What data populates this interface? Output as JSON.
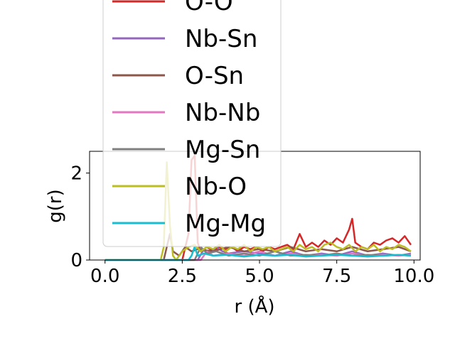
{
  "chart_data": {
    "type": "line",
    "xlabel": "r (Å)",
    "ylabel": "g(r)",
    "xlim": [
      -0.5,
      10.2
    ],
    "ylim": [
      0,
      2.5
    ],
    "xticks": [
      0.0,
      2.5,
      5.0,
      7.5,
      10.0
    ],
    "xtick_labels": [
      "0.0",
      "2.5",
      "5.0",
      "7.5",
      "10.0"
    ],
    "yticks": [
      0,
      2
    ],
    "ytick_labels": [
      "0",
      "2"
    ],
    "legend_position": "upper-left, extending above axes",
    "series": [
      {
        "name": "O-O",
        "color": "#d62728",
        "x": [
          0,
          2.5,
          2.6,
          2.7,
          2.8,
          2.9,
          3.0,
          3.1,
          3.3,
          3.5,
          3.7,
          3.9,
          4.1,
          4.3,
          4.5,
          4.7,
          4.9,
          5.1,
          5.3,
          5.5,
          5.7,
          5.9,
          6.1,
          6.3,
          6.5,
          6.7,
          6.9,
          7.1,
          7.3,
          7.5,
          7.7,
          7.9,
          8.0,
          8.1,
          8.3,
          8.5,
          8.7,
          8.9,
          9.1,
          9.3,
          9.5,
          9.7,
          9.9
        ],
        "y": [
          0,
          0,
          0.3,
          0.6,
          2.3,
          2.4,
          0.4,
          0.2,
          0.3,
          0.2,
          0.3,
          0.25,
          0.3,
          0.2,
          0.3,
          0.25,
          0.3,
          0.2,
          0.3,
          0.25,
          0.3,
          0.35,
          0.25,
          0.6,
          0.3,
          0.4,
          0.3,
          0.45,
          0.35,
          0.5,
          0.4,
          0.7,
          0.95,
          0.4,
          0.3,
          0.25,
          0.4,
          0.35,
          0.45,
          0.5,
          0.4,
          0.55,
          0.35
        ]
      },
      {
        "name": "Nb-Sn",
        "color": "#9467bd",
        "x": [
          0,
          3.0,
          3.2,
          3.4,
          3.6,
          3.8,
          4.0,
          4.5,
          5.0,
          5.5,
          6.0,
          6.5,
          7.0,
          7.5,
          8.0,
          8.5,
          9.0,
          9.5,
          9.9
        ],
        "y": [
          0,
          0,
          0.25,
          0.15,
          0.3,
          0.2,
          0.15,
          0.2,
          0.15,
          0.1,
          0.2,
          0.1,
          0.15,
          0.1,
          0.2,
          0.1,
          0.15,
          0.1,
          0.15
        ]
      },
      {
        "name": "O-Sn",
        "color": "#8c564b",
        "x": [
          0,
          1.9,
          2.0,
          2.1,
          2.2,
          2.4,
          2.6,
          2.8,
          3.0,
          3.5,
          4.0,
          4.5,
          5.0,
          5.5,
          6.0,
          6.5,
          7.0,
          7.5,
          8.0,
          8.5,
          9.0,
          9.5,
          9.9
        ],
        "y": [
          0,
          0,
          0.3,
          0.6,
          0.2,
          0.1,
          0.3,
          0.2,
          0.25,
          0.2,
          0.3,
          0.2,
          0.25,
          0.2,
          0.3,
          0.2,
          0.25,
          0.2,
          0.3,
          0.2,
          0.25,
          0.3,
          0.2
        ]
      },
      {
        "name": "Nb-Nb",
        "color": "#e377c2",
        "x": [
          0,
          3.1,
          3.3,
          3.5,
          4.0,
          4.5,
          5.0,
          5.5,
          6.0,
          6.5,
          7.0,
          7.5,
          8.0,
          8.5,
          9.0,
          9.5,
          9.9
        ],
        "y": [
          0,
          0,
          0.2,
          0.1,
          0.15,
          0.1,
          0.2,
          0.1,
          0.15,
          0.1,
          0.12,
          0.1,
          0.15,
          0.1,
          0.12,
          0.1,
          0.12
        ]
      },
      {
        "name": "Mg-Sn",
        "color": "#7f7f7f",
        "x": [
          0,
          2.9,
          3.1,
          3.3,
          3.6,
          4.0,
          4.5,
          5.0,
          5.5,
          6.0,
          6.5,
          7.0,
          7.5,
          8.0,
          8.5,
          9.0,
          9.5,
          9.9
        ],
        "y": [
          0,
          0,
          0.3,
          0.15,
          0.2,
          0.1,
          0.15,
          0.1,
          0.2,
          0.1,
          0.12,
          0.1,
          0.15,
          0.1,
          0.12,
          0.1,
          0.12,
          0.1
        ]
      },
      {
        "name": "Nb-O",
        "color": "#bcbd22",
        "x": [
          0,
          1.8,
          1.9,
          2.0,
          2.1,
          2.2,
          2.3,
          2.5,
          2.7,
          2.9,
          3.1,
          3.3,
          3.5,
          3.7,
          3.9,
          4.1,
          4.3,
          4.5,
          4.7,
          4.9,
          5.1,
          5.3,
          5.5,
          5.7,
          5.9,
          6.1,
          6.3,
          6.5,
          6.7,
          6.9,
          7.1,
          7.3,
          7.5,
          7.7,
          7.9,
          8.1,
          8.3,
          8.5,
          8.7,
          8.9,
          9.1,
          9.3,
          9.5,
          9.7,
          9.9
        ],
        "y": [
          0,
          0,
          0.3,
          2.25,
          0.8,
          0.1,
          0.0,
          0.2,
          0.3,
          0.35,
          0.2,
          0.3,
          0.25,
          0.35,
          0.2,
          0.3,
          0.25,
          0.35,
          0.2,
          0.3,
          0.25,
          0.3,
          0.2,
          0.25,
          0.3,
          0.2,
          0.35,
          0.25,
          0.3,
          0.2,
          0.35,
          0.4,
          0.3,
          0.25,
          0.35,
          0.2,
          0.3,
          0.25,
          0.35,
          0.2,
          0.3,
          0.25,
          0.35,
          0.3,
          0.2
        ]
      },
      {
        "name": "Mg-Mg",
        "color": "#17becf",
        "x": [
          0,
          2.7,
          2.8,
          2.9,
          3.0,
          3.2,
          3.5,
          4.0,
          4.5,
          5.0,
          5.5,
          6.0,
          6.5,
          7.0,
          7.5,
          8.0,
          8.5,
          9.0,
          9.5,
          9.9
        ],
        "y": [
          0,
          0,
          0.1,
          0.3,
          0.1,
          0.15,
          0.1,
          0.12,
          0.08,
          0.12,
          0.1,
          0.12,
          0.08,
          0.1,
          0.12,
          0.1,
          0.08,
          0.1,
          0.12,
          0.1
        ]
      }
    ]
  }
}
